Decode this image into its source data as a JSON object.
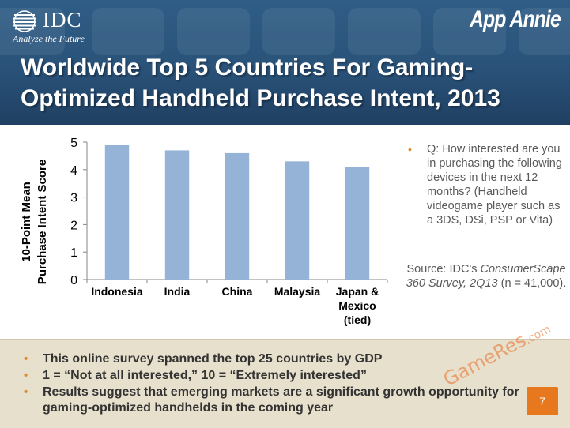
{
  "header": {
    "idc_logo_text": "IDC",
    "idc_tagline": "Analyze the Future",
    "app_annie_logo": "App Annie",
    "title": "Worldwide Top 5 Countries For Gaming-Optimized Handheld Purchase Intent, 2013"
  },
  "chart_data": {
    "type": "bar",
    "categories": [
      "Indonesia",
      "India",
      "China",
      "Malaysia",
      "Japan & Mexico (tied)"
    ],
    "category_lines": [
      [
        "Indonesia"
      ],
      [
        "India"
      ],
      [
        "China"
      ],
      [
        "Malaysia"
      ],
      [
        "Japan &",
        "Mexico",
        "(tied)"
      ]
    ],
    "values": [
      4.9,
      4.7,
      4.6,
      4.3,
      4.1
    ],
    "ylabel_lines": [
      "10-Point Mean",
      "Purchase Intent Score"
    ],
    "ylim": [
      0,
      5
    ],
    "yticks": [
      0,
      1,
      2,
      3,
      4,
      5
    ],
    "bar_color": "#95b3d7",
    "grid": false
  },
  "notes": {
    "question": "Q: How interested are you in purchasing the following devices in the next 12 months? (Handheld videogame player such as a 3DS, DSi, PSP or Vita)",
    "source_prefix": "Source: IDC's",
    "source_italic": "ConsumerScape 360 Survey, 2Q13",
    "source_suffix": "(n = 41,000)."
  },
  "footer": {
    "bullets": [
      "This online survey spanned the top 25 countries by GDP",
      "1 = “Not at all interested,” 10 = “Extremely interested”",
      "Results suggest that emerging markets are a significant growth opportunity for gaming-optimized handhelds in the coming year"
    ],
    "page_number": "7"
  },
  "watermark": {
    "main": "GameRes",
    "suffix": ".com"
  },
  "colors": {
    "header_bg": "#2a5279",
    "accent_orange": "#e8781e",
    "footer_bg": "#e7e0cc"
  }
}
